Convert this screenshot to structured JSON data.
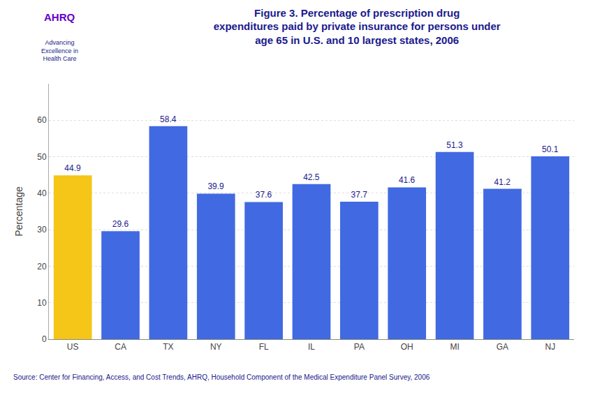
{
  "chart_data": {
    "type": "bar",
    "title": "Figure 3. Percentage of prescription drug\nexpenditures paid by private insurance for persons under\nage 65 in U.S. and 10 largest states, 2006",
    "ylabel": "Percentage",
    "categories": [
      "US",
      "CA",
      "TX",
      "NY",
      "FL",
      "IL",
      "PA",
      "OH",
      "MI",
      "GA",
      "NJ"
    ],
    "values": [
      44.9,
      29.6,
      58.4,
      39.9,
      37.6,
      42.5,
      37.7,
      41.6,
      51.3,
      41.2,
      50.1
    ],
    "colors": [
      "#F5C518",
      "#4169E1",
      "#4169E1",
      "#4169E1",
      "#4169E1",
      "#4169E1",
      "#4169E1",
      "#4169E1",
      "#4169E1",
      "#4169E1",
      "#4169E1"
    ],
    "ylim": [
      0,
      70
    ],
    "yticks": [
      0,
      10,
      20,
      30,
      40,
      50,
      60
    ],
    "grid": true,
    "data_labels": true,
    "annotations": [
      "AHRQ",
      "Advancing\nExcellence in\nHealth Care",
      "Source: Center for Financing, Access, and Cost Trends, AHRQ, Household Component of the Medical Expenditure Panel Survey, 2006"
    ]
  }
}
